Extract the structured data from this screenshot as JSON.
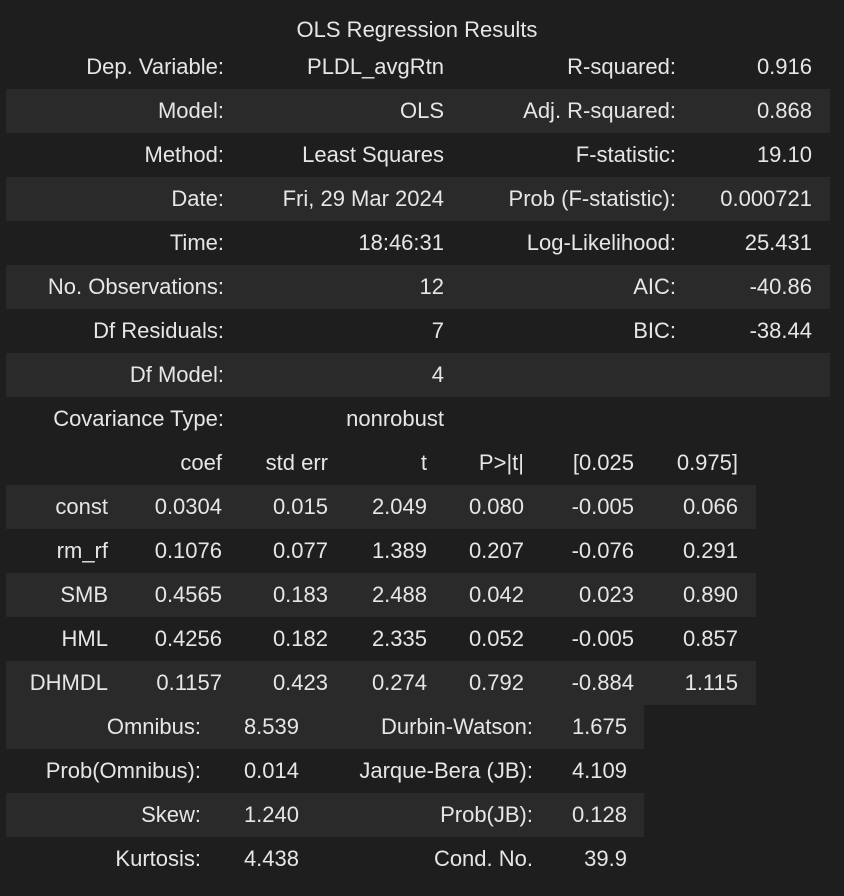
{
  "caption": "OLS Regression Results",
  "summary": [
    [
      "Dep. Variable:",
      "PLDL_avgRtn",
      "R-squared:",
      "0.916"
    ],
    [
      "Model:",
      "OLS",
      "Adj. R-squared:",
      "0.868"
    ],
    [
      "Method:",
      "Least Squares",
      "F-statistic:",
      "19.10"
    ],
    [
      "Date:",
      "Fri, 29 Mar 2024",
      "Prob (F-statistic):",
      "0.000721"
    ],
    [
      "Time:",
      "18:46:31",
      "Log-Likelihood:",
      "25.431"
    ],
    [
      "No. Observations:",
      "12",
      "AIC:",
      "-40.86"
    ],
    [
      "Df Residuals:",
      "7",
      "BIC:",
      "-38.44"
    ],
    [
      "Df Model:",
      "4",
      "",
      ""
    ],
    [
      "Covariance Type:",
      "nonrobust",
      "",
      ""
    ]
  ],
  "coef_table": {
    "headers": [
      "",
      "coef",
      "std err",
      "t",
      "P>|t|",
      "[0.025",
      "0.975]"
    ],
    "rows": [
      [
        "const",
        "0.0304",
        "0.015",
        "2.049",
        "0.080",
        "-0.005",
        "0.066"
      ],
      [
        "rm_rf",
        "0.1076",
        "0.077",
        "1.389",
        "0.207",
        "-0.076",
        "0.291"
      ],
      [
        "SMB",
        "0.4565",
        "0.183",
        "2.488",
        "0.042",
        "0.023",
        "0.890"
      ],
      [
        "HML",
        "0.4256",
        "0.182",
        "2.335",
        "0.052",
        "-0.005",
        "0.857"
      ],
      [
        "DHMDL",
        "0.1157",
        "0.423",
        "0.274",
        "0.792",
        "-0.884",
        "1.115"
      ]
    ]
  },
  "diagnostics": [
    [
      "Omnibus:",
      "8.539",
      "Durbin-Watson:",
      "1.675"
    ],
    [
      "Prob(Omnibus):",
      "0.014",
      "Jarque-Bera (JB):",
      "4.109"
    ],
    [
      "Skew:",
      "1.240",
      "Prob(JB):",
      "0.128"
    ],
    [
      "Kurtosis:",
      "4.438",
      "Cond. No.",
      "39.9"
    ]
  ]
}
